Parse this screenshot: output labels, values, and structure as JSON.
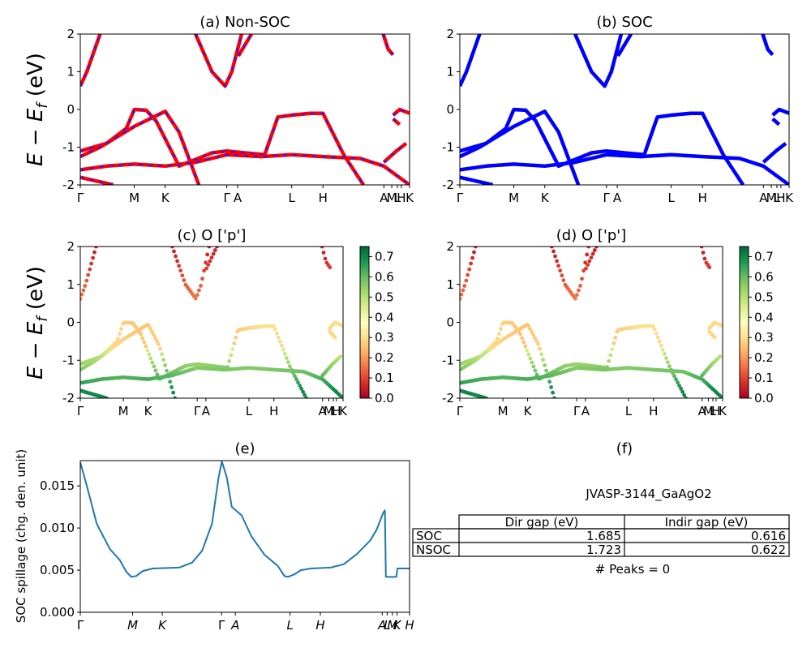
{
  "figure": {
    "ylabel_main": "E − E_f (eV)",
    "ylabel_spillage": "SOC spillage (chg. den. unit)"
  },
  "panels": {
    "a": {
      "title": "(a) Non-SOC"
    },
    "b": {
      "title": "(b) SOC"
    },
    "c": {
      "title": "(c)  O ['p']"
    },
    "d": {
      "title": "(d) O ['p']"
    },
    "e": {
      "title": "(e)"
    },
    "f": {
      "title": "(f)"
    }
  },
  "colorbar": {
    "ticks": [
      "0.0",
      "0.1",
      "0.2",
      "0.3",
      "0.4",
      "0.5",
      "0.6",
      "0.7"
    ],
    "range": [
      0,
      0.75
    ],
    "colormap": "RdYlGn"
  },
  "band_kpath": [
    {
      "label": "Γ",
      "t": 0.0
    },
    {
      "label": "M",
      "t": 0.164
    },
    {
      "label": "K",
      "t": 0.258
    },
    {
      "label": "Γ",
      "t": 0.445
    },
    {
      "label": "A",
      "t": 0.478
    },
    {
      "label": "L",
      "t": 0.642
    },
    {
      "label": "H",
      "t": 0.737
    },
    {
      "label": "A",
      "t": 0.922
    },
    {
      "label": "M",
      "t": 0.946
    },
    {
      "label": "L",
      "t": 0.963
    },
    {
      "label": "H",
      "t": 0.975
    },
    {
      "label": "K",
      "t": 1.0
    }
  ],
  "colors": {
    "nonsoc_line": "#ff0000",
    "nonsoc_dash": "#1f1fff",
    "soc_line": "#0000ff",
    "spillage_line": "#1f77b4"
  },
  "table": {
    "title": "JVASP-3144_GaAgO2",
    "headers": [
      "",
      "Dir gap (eV)",
      "Indir gap (eV)"
    ],
    "rows": [
      [
        "SOC",
        "1.685",
        "0.616"
      ],
      [
        "NSOC",
        "1.723",
        "0.622"
      ]
    ],
    "peaks": "# Peaks = 0"
  },
  "chart_data": [
    {
      "type": "line",
      "title": "(a) Non-SOC",
      "ylabel": "E − E_f (eV)",
      "ylim": [
        -2,
        2
      ],
      "yticks": [
        -2,
        -1,
        0,
        1,
        2
      ],
      "xticklabels": [
        "Γ",
        "M",
        "K",
        "Γ",
        "A",
        "L",
        "H",
        "A",
        "M",
        "L",
        "H",
        "K"
      ],
      "series": [
        {
          "values": [
            [
              0.0,
              0.62
            ],
            [
              0.02,
              1.0
            ],
            [
              0.06,
              2.0
            ]
          ]
        },
        {
          "values": [
            [
              0.35,
              2.0
            ],
            [
              0.4,
              1.0
            ],
            [
              0.44,
              0.62
            ],
            [
              0.46,
              1.0
            ],
            [
              0.49,
              2.0
            ]
          ]
        },
        {
          "values": [
            [
              0.48,
              1.42
            ],
            [
              0.52,
              2.0
            ]
          ]
        },
        {
          "values": [
            [
              0.92,
              2.0
            ],
            [
              0.935,
              1.6
            ],
            [
              0.95,
              1.45
            ]
          ]
        },
        {
          "values": [
            [
              0.0,
              -1.1
            ],
            [
              0.08,
              -0.9
            ],
            [
              0.14,
              -0.5
            ],
            [
              0.164,
              0.0
            ],
            [
              0.2,
              -0.02
            ],
            [
              0.23,
              -0.3
            ],
            [
              0.3,
              -1.5
            ],
            [
              0.4,
              -1.15
            ],
            [
              0.445,
              -1.1
            ],
            [
              0.5,
              -1.15
            ],
            [
              0.56,
              -1.2
            ],
            [
              0.6,
              -0.2
            ],
            [
              0.642,
              -0.15
            ],
            [
              0.7,
              -0.1
            ],
            [
              0.737,
              -0.1
            ],
            [
              0.8,
              -1.2
            ],
            [
              0.86,
              -2.0
            ]
          ]
        },
        {
          "values": [
            [
              0.0,
              -1.25
            ],
            [
              0.06,
              -1.0
            ],
            [
              0.164,
              -0.45
            ],
            [
              0.258,
              -0.05
            ],
            [
              0.3,
              -0.6
            ],
            [
              0.36,
              -2.0
            ]
          ]
        },
        {
          "values": [
            [
              0.0,
              -1.6
            ],
            [
              0.08,
              -1.5
            ],
            [
              0.164,
              -1.45
            ],
            [
              0.258,
              -1.5
            ],
            [
              0.35,
              -1.4
            ],
            [
              0.445,
              -1.2
            ],
            [
              0.55,
              -1.25
            ],
            [
              0.642,
              -1.2
            ],
            [
              0.737,
              -1.25
            ],
            [
              0.85,
              -1.3
            ],
            [
              0.922,
              -1.5
            ],
            [
              1.0,
              -2.0
            ]
          ]
        },
        {
          "values": [
            [
              0.0,
              -1.8
            ],
            [
              0.05,
              -1.9
            ],
            [
              0.1,
              -2.0
            ]
          ]
        },
        {
          "values": [
            [
              0.95,
              -0.15
            ],
            [
              0.97,
              0.0
            ],
            [
              1.0,
              -0.1
            ]
          ]
        },
        {
          "values": [
            [
              0.95,
              -0.25
            ],
            [
              0.97,
              -0.4
            ]
          ]
        },
        {
          "values": [
            [
              0.922,
              -1.4
            ],
            [
              0.96,
              -1.1
            ],
            [
              0.99,
              -0.9
            ]
          ]
        }
      ]
    },
    {
      "type": "line",
      "title": "(b) SOC",
      "ylim": [
        -2,
        2
      ],
      "yticks": [
        -2,
        -1,
        0,
        1,
        2
      ],
      "xticklabels": [
        "Γ",
        "M",
        "K",
        "Γ",
        "A",
        "L",
        "H",
        "A",
        "M",
        "L",
        "H",
        "K"
      ]
    },
    {
      "type": "scatter",
      "title": "(c)  O ['p']",
      "ylabel": "E − E_f (eV)",
      "ylim": [
        -2,
        2
      ],
      "colorbar_range": [
        0,
        0.75
      ]
    },
    {
      "type": "scatter",
      "title": "(d) O ['p']",
      "ylim": [
        -2,
        2
      ],
      "colorbar_range": [
        0,
        0.75
      ]
    },
    {
      "type": "line",
      "title": "(e)",
      "ylabel": "SOC spillage (chg. den. unit)",
      "ylim": [
        0,
        0.018
      ],
      "yticks": [
        "0.000",
        "0.005",
        "0.010",
        "0.015"
      ],
      "xticklabels": [
        "Γ",
        "M",
        "K",
        "Γ",
        "A",
        "L",
        "H",
        "A",
        "L",
        "M",
        "K",
        "H"
      ],
      "xtick_t": [
        0.0,
        0.159,
        0.249,
        0.429,
        0.471,
        0.637,
        0.729,
        0.917,
        0.932,
        0.948,
        0.962,
        1.0
      ],
      "series": [
        {
          "values": [
            [
              0.0,
              0.0178
            ],
            [
              0.02,
              0.015
            ],
            [
              0.05,
              0.0105
            ],
            [
              0.09,
              0.0075
            ],
            [
              0.12,
              0.0062
            ],
            [
              0.14,
              0.0048
            ],
            [
              0.155,
              0.0042
            ],
            [
              0.17,
              0.0043
            ],
            [
              0.19,
              0.0049
            ],
            [
              0.22,
              0.0052
            ],
            [
              0.3,
              0.0053
            ],
            [
              0.34,
              0.0059
            ],
            [
              0.37,
              0.0073
            ],
            [
              0.4,
              0.0105
            ],
            [
              0.42,
              0.016
            ],
            [
              0.43,
              0.0179
            ],
            [
              0.445,
              0.016
            ],
            [
              0.46,
              0.0125
            ],
            [
              0.49,
              0.0115
            ],
            [
              0.52,
              0.009
            ],
            [
              0.56,
              0.0068
            ],
            [
              0.6,
              0.0055
            ],
            [
              0.62,
              0.0043
            ],
            [
              0.63,
              0.0042
            ],
            [
              0.65,
              0.0045
            ],
            [
              0.67,
              0.005
            ],
            [
              0.7,
              0.0052
            ],
            [
              0.76,
              0.0053
            ],
            [
              0.8,
              0.0057
            ],
            [
              0.84,
              0.0069
            ],
            [
              0.88,
              0.0085
            ],
            [
              0.9,
              0.0098
            ],
            [
              0.92,
              0.0118
            ],
            [
              0.925,
              0.0121
            ],
            [
              0.928,
              0.0042
            ],
            [
              0.96,
              0.0042
            ],
            [
              0.963,
              0.0052
            ],
            [
              1.0,
              0.0052
            ]
          ]
        }
      ]
    }
  ]
}
